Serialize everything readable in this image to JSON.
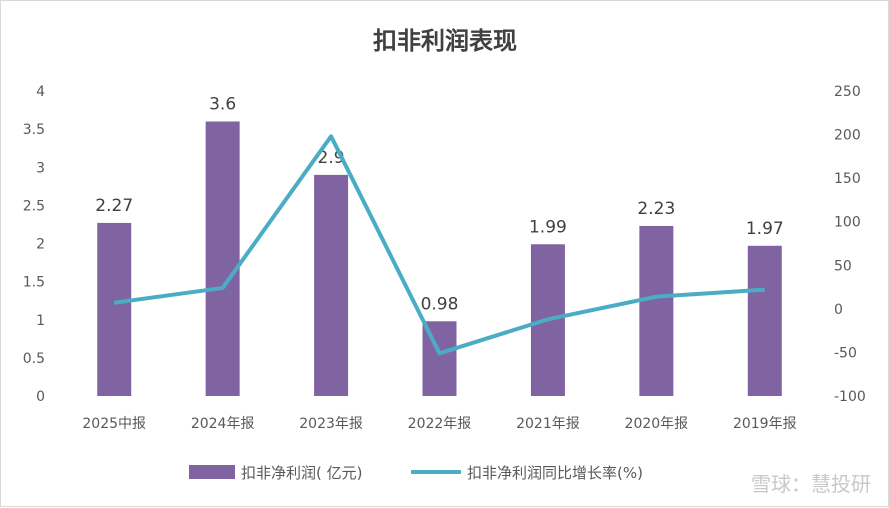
{
  "chart_data": {
    "type": "bar",
    "title": "扣非利润表现",
    "categories": [
      "2025中报",
      "2024年报",
      "2023年报",
      "2022年报",
      "2021年报",
      "2020年报",
      "2019年报"
    ],
    "series": [
      {
        "name": "扣非净利润( 亿元)",
        "type": "bar",
        "axis": "left",
        "color": "#8064a2",
        "values": [
          2.27,
          3.6,
          2.9,
          0.98,
          1.99,
          2.23,
          1.97
        ],
        "labels": [
          "2.27",
          "3.6",
          "2.9",
          "0.98",
          "1.99",
          "2.23",
          "1.97"
        ]
      },
      {
        "name": "扣非净利润同比增长率(%)",
        "type": "line",
        "axis": "right",
        "color": "#4bacc6",
        "values": [
          7,
          24,
          198,
          -51,
          -12,
          14,
          22
        ]
      }
    ],
    "left_axis": {
      "ylim": [
        0,
        4
      ],
      "ticks": [
        "0",
        "0.5",
        "1",
        "1.5",
        "2",
        "2.5",
        "3",
        "3.5",
        "4"
      ]
    },
    "right_axis": {
      "ylim": [
        -100,
        250
      ],
      "ticks": [
        "-100",
        "-50",
        "0",
        "50",
        "100",
        "150",
        "200",
        "250"
      ]
    },
    "legend": "bottom",
    "grid": false
  },
  "watermark": "雪球：慧投研"
}
